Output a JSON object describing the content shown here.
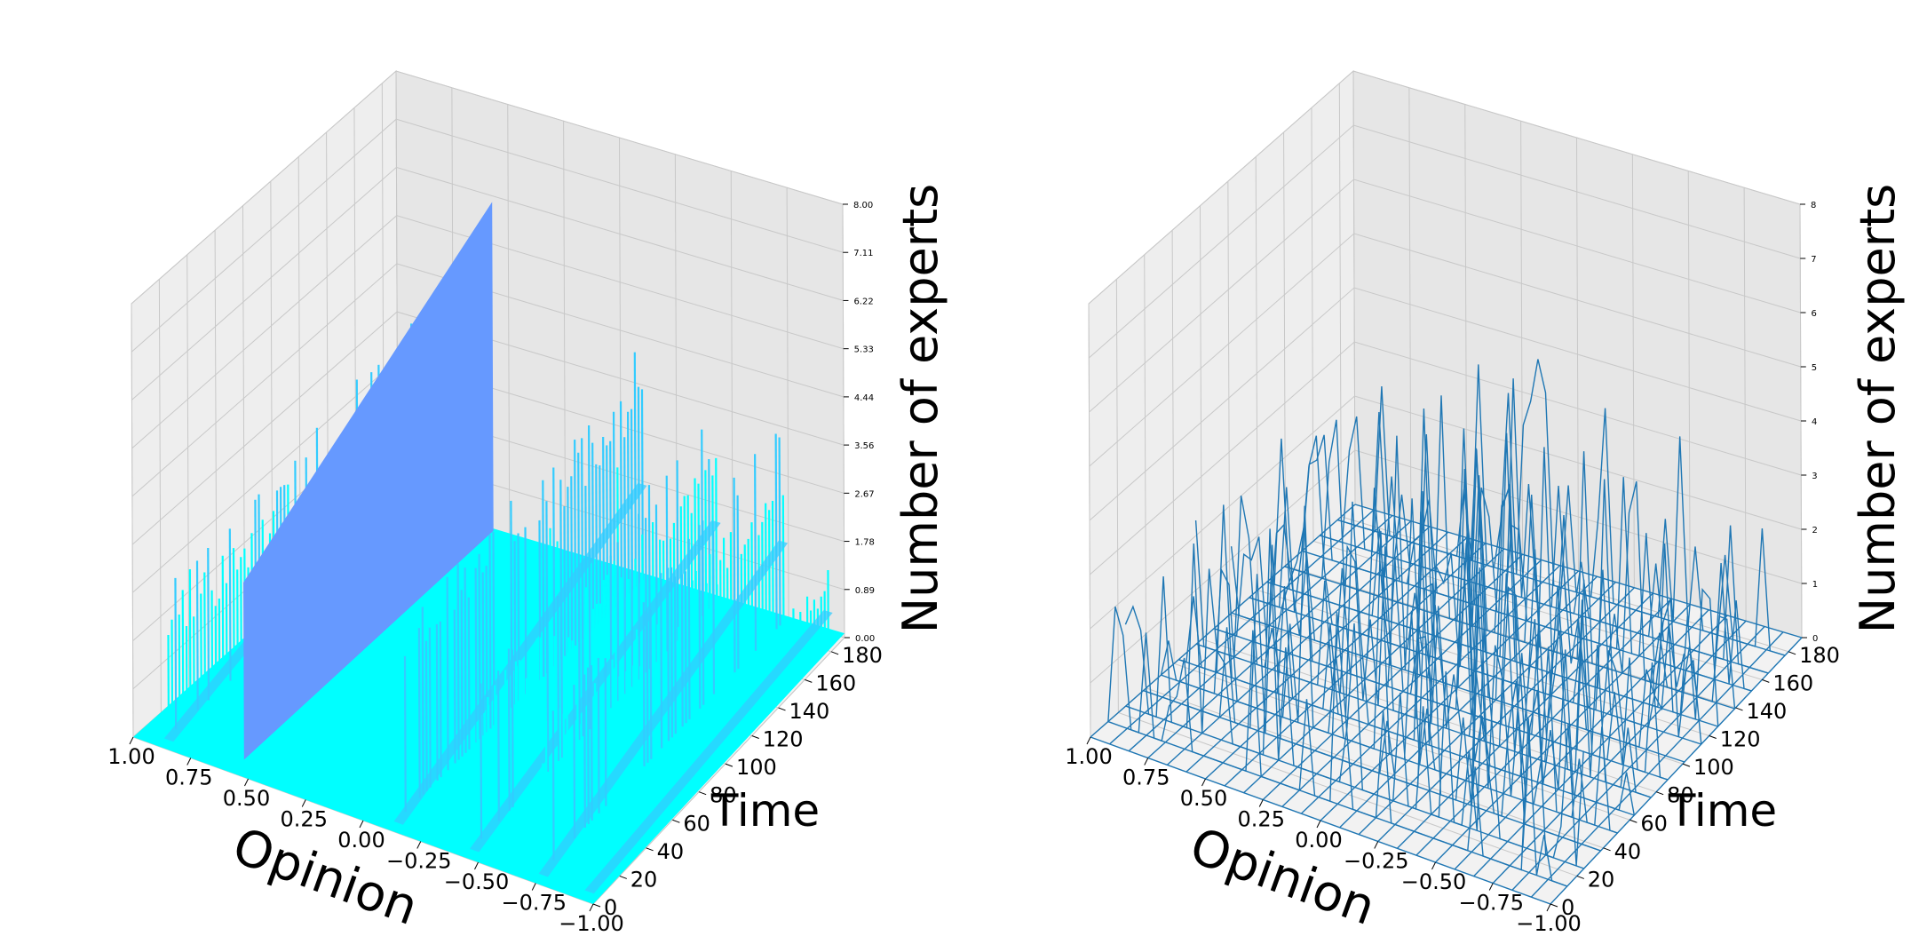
{
  "chart_data": [
    {
      "type": "surface3d",
      "style": "filled surface, cool colormap",
      "xlabel": "Opinion",
      "ylabel": "Time",
      "zlabel": "Number of experts",
      "x_ticks": [
        "1.00",
        "0.75",
        "0.50",
        "0.25",
        "0.00",
        "−0.25",
        "−0.50",
        "−0.75",
        "−1.00"
      ],
      "y_ticks": [
        "0",
        "20",
        "40",
        "60",
        "80",
        "100",
        "120",
        "140",
        "160",
        "180"
      ],
      "z_ticks": [
        "0.00",
        "0.89",
        "1.78",
        "2.67",
        "3.56",
        "4.44",
        "5.33",
        "6.22",
        "7.11",
        "8.00"
      ],
      "xlim": [
        -1,
        1
      ],
      "ylim": [
        0,
        190
      ],
      "zlim": [
        0,
        8
      ],
      "grid": true,
      "colors": {
        "low": "#00ffff",
        "mid": "#33ccff",
        "high": "#6699ff"
      },
      "ridges": [
        {
          "opinion": 0.88,
          "peak": 3.8,
          "pattern": "spiky"
        },
        {
          "opinion": 0.55,
          "peak": 6.2,
          "pattern": "solid"
        },
        {
          "opinion": -0.12,
          "peak": 4.6,
          "pattern": "spiky"
        },
        {
          "opinion": -0.45,
          "peak": 3.9,
          "pattern": "spiky"
        },
        {
          "opinion": -0.75,
          "peak": 3.9,
          "pattern": "spiky"
        },
        {
          "opinion": -0.95,
          "peak": 1.3,
          "pattern": "spiky"
        }
      ]
    },
    {
      "type": "wireframe3d",
      "style": "wireframe",
      "xlabel": "Opinion",
      "ylabel": "Time",
      "zlabel": "Number of experts",
      "x_ticks": [
        "1.00",
        "0.75",
        "0.50",
        "0.25",
        "0.00",
        "−0.25",
        "−0.50",
        "−0.75",
        "−1.00"
      ],
      "y_ticks": [
        "0",
        "20",
        "40",
        "60",
        "80",
        "100",
        "120",
        "140",
        "160",
        "180"
      ],
      "z_ticks": [
        "0",
        "1",
        "2",
        "3",
        "4",
        "5",
        "6",
        "7",
        "8"
      ],
      "xlim": [
        -1,
        1
      ],
      "ylim": [
        0,
        190
      ],
      "zlim": [
        0,
        8
      ],
      "grid": true,
      "colors": {
        "line": "#1f77b4"
      },
      "approx_max": 4.6
    }
  ]
}
